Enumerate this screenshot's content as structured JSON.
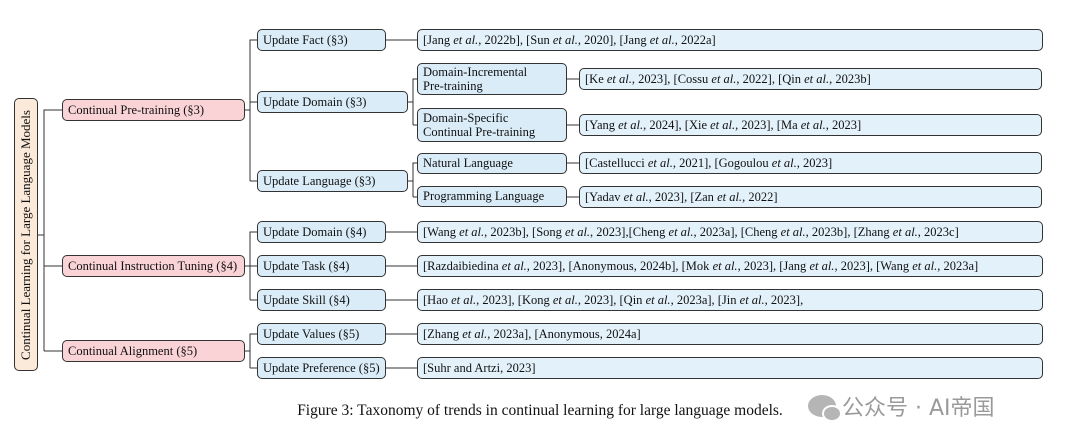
{
  "root": "Continual Learning for Large Language Models",
  "pretraining": {
    "label": "Continual Pre-training (§3)",
    "fact": {
      "label": "Update Fact (§3)",
      "refs": "[Jang et al., 2022b], [Sun et al., 2020], [Jang et al., 2022a]"
    },
    "domain": {
      "label": "Update Domain (§3)",
      "incremental": {
        "line1": "Domain-Incremental",
        "line2": "Pre-training",
        "refs": "[Ke et al., 2023], [Cossu et al., 2022], [Qin et al., 2023b]"
      },
      "specific": {
        "line1": "Domain-Specific",
        "line2": "Continual Pre-training",
        "refs": "[Yang et al., 2024], [Xie et al., 2023], [Ma et al., 2023]"
      }
    },
    "language": {
      "label": "Update Language (§3)",
      "natural": {
        "label": "Natural Language",
        "refs": "[Castellucci et al., 2021], [Gogoulou et al., 2023]"
      },
      "programming": {
        "label": "Programming Language",
        "refs": "[Yadav et al., 2023], [Zan et al., 2022]"
      }
    }
  },
  "instruction": {
    "label": "Continual Instruction Tuning (§4)",
    "domain": {
      "label": "Update Domain (§4)",
      "refs": "[Wang et al., 2023b], [Song et al., 2023],[Cheng et al., 2023a], [Cheng et al., 2023b], [Zhang et al., 2023c]"
    },
    "task": {
      "label": "Update Task (§4)",
      "refs": "[Razdaibiedina et al., 2023], [Anonymous, 2024b], [Mok et al., 2023], [Jang et al., 2023], [Wang et al., 2023a]"
    },
    "skill": {
      "label": "Update Skill (§4)",
      "refs": "[Hao et al., 2023], [Kong et al., 2023], [Qin et al., 2023a], [Jin et al., 2023],"
    }
  },
  "alignment": {
    "label": "Continual Alignment (§5)",
    "values": {
      "label": "Update Values (§5)",
      "refs": "[Zhang et al., 2023a], [Anonymous, 2024a]"
    },
    "preference": {
      "label": "Update Preference (§5)",
      "refs": "[Suhr and Artzi, 2023]"
    }
  },
  "caption": "Figure 3: Taxonomy of trends in continual learning for large language models.",
  "watermark": "公众号 · AI帝国"
}
